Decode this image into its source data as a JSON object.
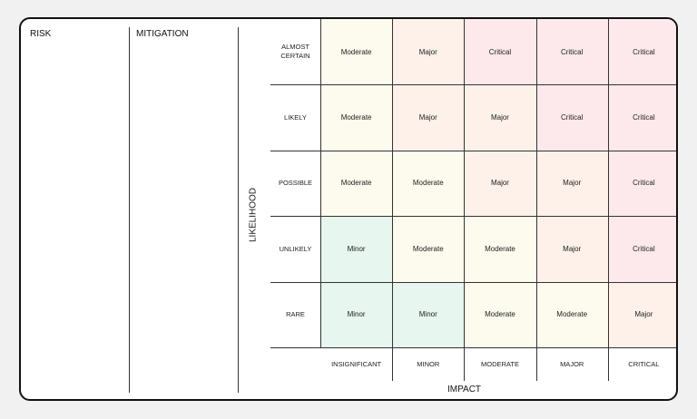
{
  "columns": {
    "risk": "RISK",
    "mitigation": "MITIGATION"
  },
  "matrix": {
    "y_axis_label": "LIKELIHOOD",
    "x_axis_label": "IMPACT",
    "likelihood": [
      "ALMOST CERTAIN",
      "LIKELY",
      "POSSIBLE",
      "UNLIKELY",
      "RARE"
    ],
    "impact": [
      "INSIGNIFICANT",
      "MINOR",
      "MODERATE",
      "MAJOR",
      "CRITICAL"
    ],
    "cells": [
      [
        "Moderate",
        "Major",
        "Critical",
        "Critical",
        "Critical"
      ],
      [
        "Moderate",
        "Major",
        "Major",
        "Critical",
        "Critical"
      ],
      [
        "Moderate",
        "Moderate",
        "Major",
        "Major",
        "Critical"
      ],
      [
        "Minor",
        "Moderate",
        "Moderate",
        "Major",
        "Critical"
      ],
      [
        "Minor",
        "Minor",
        "Moderate",
        "Moderate",
        "Major"
      ]
    ],
    "level_colors": {
      "Minor": "#e7f6ef",
      "Moderate": "#fdfbee",
      "Major": "#fdf1ea",
      "Critical": "#fde9eb"
    }
  }
}
